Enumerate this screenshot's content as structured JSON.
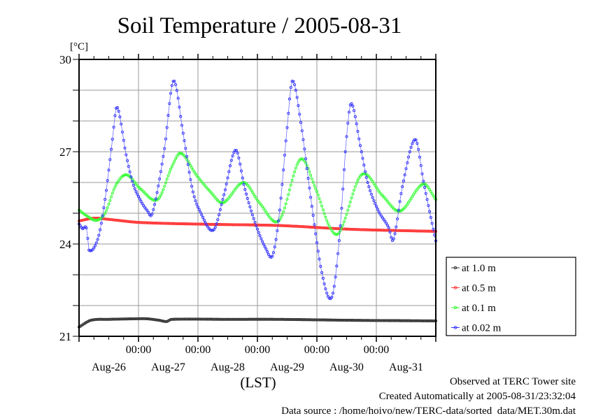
{
  "chart_data": {
    "type": "line",
    "title": "Soil Temperature / 2005-08-31",
    "ylabel": "[°C]",
    "xlabel": "(LST)",
    "ylim": [
      21,
      30
    ],
    "xlim_hours": [
      0,
      144
    ],
    "x_origin": "Aug-26 00:00",
    "y_major_ticks": [
      {
        "value": 30,
        "label": "30"
      },
      {
        "value": 27,
        "label": "27"
      },
      {
        "value": 24,
        "label": "24"
      },
      {
        "value": 21,
        "label": "21"
      }
    ],
    "y_grid": [
      22,
      23,
      24,
      25,
      26,
      27,
      28,
      29
    ],
    "x_time_ticks": [
      {
        "hour": 24,
        "label": "00:00"
      },
      {
        "hour": 48,
        "label": "00:00"
      },
      {
        "hour": 72,
        "label": "00:00"
      },
      {
        "hour": 96,
        "label": "00:00"
      },
      {
        "hour": 120,
        "label": "00:00"
      }
    ],
    "x_day_labels": [
      {
        "hour": 12,
        "label": "Aug-26"
      },
      {
        "hour": 36,
        "label": "Aug-27"
      },
      {
        "hour": 60,
        "label": "Aug-28"
      },
      {
        "hour": 84,
        "label": "Aug-29"
      },
      {
        "hour": 108,
        "label": "Aug-30"
      },
      {
        "hour": 132,
        "label": "Aug-31"
      }
    ],
    "grid": true,
    "legend_position": "right-bottom",
    "series": [
      {
        "name": "at 1.0 m",
        "color": "#333333",
        "points": [
          [
            0,
            21.3
          ],
          [
            4.8,
            21.52
          ],
          [
            12,
            21.55
          ],
          [
            23.4,
            21.57
          ],
          [
            27.3,
            21.57
          ],
          [
            32.4,
            21.52
          ],
          [
            35.3,
            21.48
          ],
          [
            37.3,
            21.55
          ],
          [
            60,
            21.55
          ],
          [
            80.8,
            21.55
          ],
          [
            110,
            21.52
          ],
          [
            144,
            21.5
          ]
        ]
      },
      {
        "name": "at 0.5 m",
        "color": "#ff3333",
        "points": [
          [
            0,
            24.75
          ],
          [
            6.2,
            24.84
          ],
          [
            12,
            24.8
          ],
          [
            24.6,
            24.7
          ],
          [
            52.8,
            24.64
          ],
          [
            81,
            24.6
          ],
          [
            109.3,
            24.48
          ],
          [
            144,
            24.41
          ]
        ]
      },
      {
        "name": "at 0.1 m",
        "color": "#33ff33",
        "points": [
          [
            0,
            25.1
          ],
          [
            3.4,
            24.9
          ],
          [
            7.1,
            24.77
          ],
          [
            10.5,
            25.0
          ],
          [
            14.8,
            25.9
          ],
          [
            19.1,
            26.25
          ],
          [
            24.7,
            25.8
          ],
          [
            31.8,
            25.45
          ],
          [
            37.4,
            26.5
          ],
          [
            41.1,
            26.95
          ],
          [
            47.3,
            26.25
          ],
          [
            53,
            25.7
          ],
          [
            58.1,
            25.34
          ],
          [
            66.4,
            26.0
          ],
          [
            72.8,
            25.34
          ],
          [
            80.8,
            24.77
          ],
          [
            89.3,
            26.75
          ],
          [
            95.5,
            25.8
          ],
          [
            101.2,
            24.55
          ],
          [
            105.2,
            24.39
          ],
          [
            114,
            26.25
          ],
          [
            122.5,
            25.57
          ],
          [
            129.6,
            25.07
          ],
          [
            138.9,
            25.95
          ],
          [
            144,
            25.45
          ]
        ]
      },
      {
        "name": "at 0.02 m",
        "color": "#3333ff",
        "points": [
          [
            0,
            24.65
          ],
          [
            1.4,
            24.5
          ],
          [
            3.1,
            24.5
          ],
          [
            4,
            23.8
          ],
          [
            7.7,
            24.2
          ],
          [
            10.5,
            25.45
          ],
          [
            13.3,
            27.27
          ],
          [
            15.3,
            28.45
          ],
          [
            19,
            26.9
          ],
          [
            21.7,
            25.98
          ],
          [
            24.6,
            25.45
          ],
          [
            27.4,
            25.1
          ],
          [
            29.6,
            25.0
          ],
          [
            34.4,
            27.05
          ],
          [
            38.1,
            29.3
          ],
          [
            42,
            27.6
          ],
          [
            45.7,
            25.8
          ],
          [
            48.6,
            25.1
          ],
          [
            54.2,
            24.45
          ],
          [
            58.4,
            25.57
          ],
          [
            63.2,
            27.05
          ],
          [
            66.9,
            25.8
          ],
          [
            71.2,
            24.66
          ],
          [
            75.4,
            23.85
          ],
          [
            78.2,
            23.64
          ],
          [
            81,
            25.1
          ],
          [
            83.9,
            27.7
          ],
          [
            86.1,
            29.3
          ],
          [
            89.5,
            27.95
          ],
          [
            93.8,
            25.34
          ],
          [
            98,
            23.07
          ],
          [
            102,
            22.27
          ],
          [
            105.1,
            24.2
          ],
          [
            107.9,
            27.4
          ],
          [
            109.9,
            28.57
          ],
          [
            113.6,
            27.16
          ],
          [
            116.5,
            26.0
          ],
          [
            120.7,
            25.1
          ],
          [
            124.9,
            24.55
          ],
          [
            126.9,
            24.14
          ],
          [
            130.6,
            25.9
          ],
          [
            135.7,
            27.4
          ],
          [
            139.1,
            26.0
          ],
          [
            141.9,
            24.9
          ],
          [
            144,
            24.1
          ]
        ]
      }
    ]
  },
  "footer": {
    "observed": "Observed at TERC Tower site",
    "created": "Created Automatically at 2005-08-31/23:32:04",
    "source": "Data source : /home/hoivo/new/TERC-data/sorted  data/MET.30m.dat"
  }
}
